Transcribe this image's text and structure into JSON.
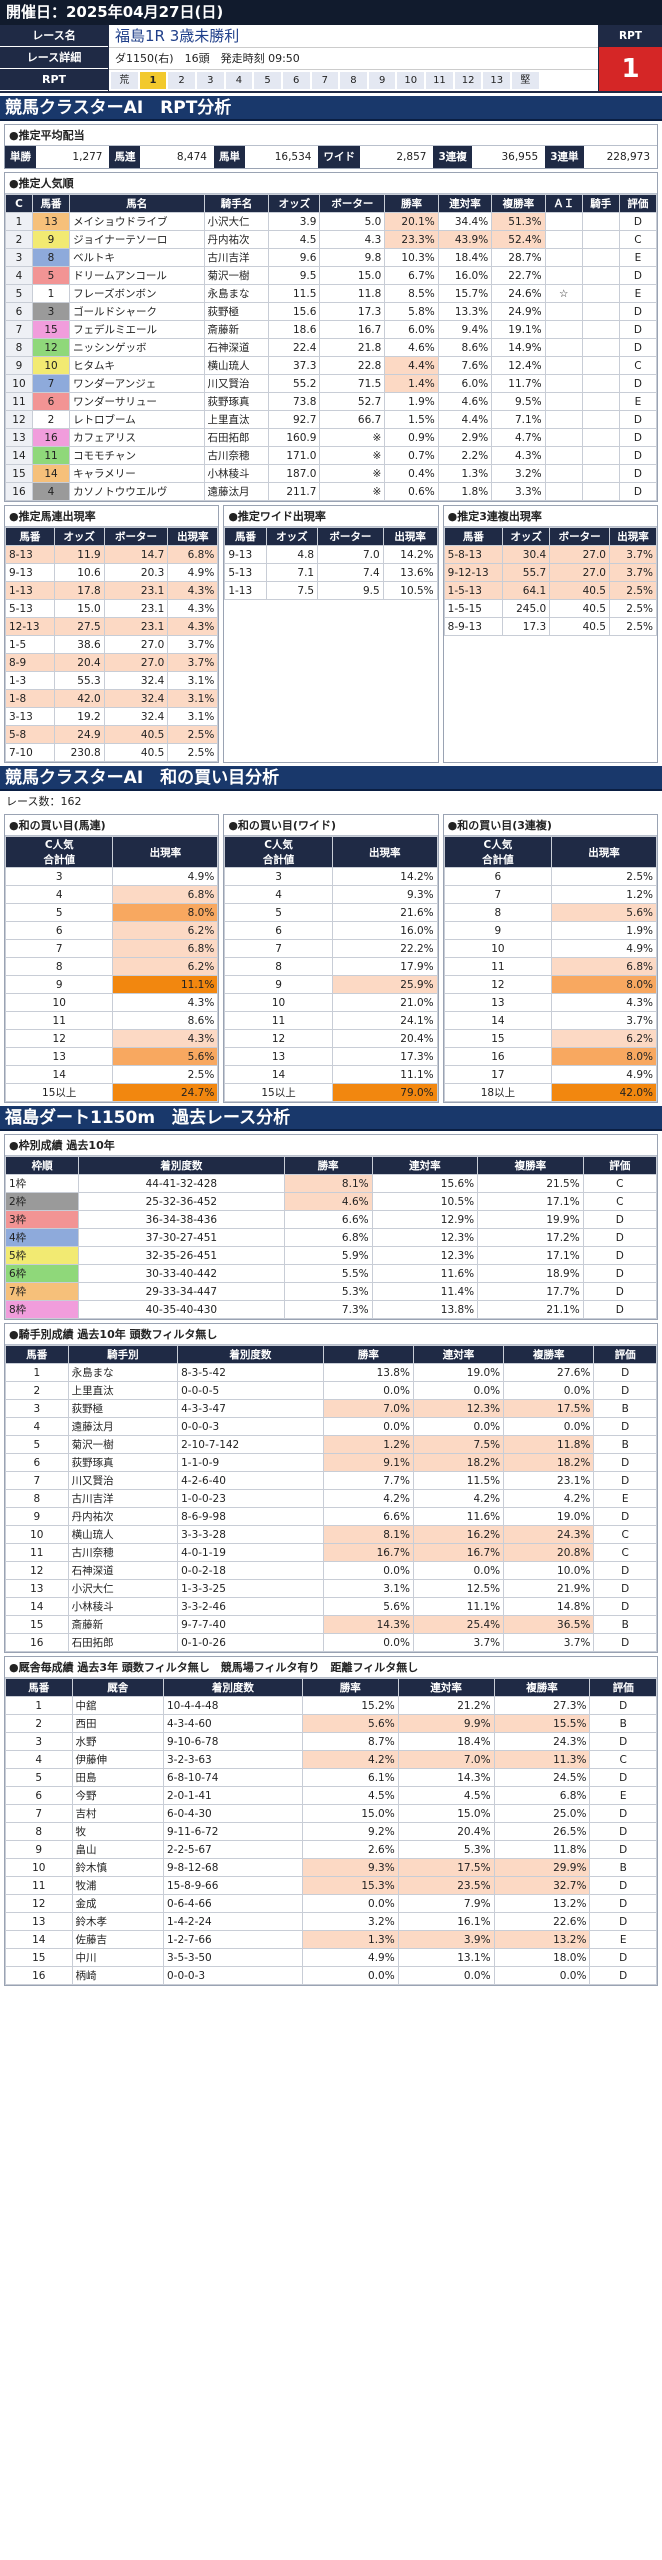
{
  "header": {
    "date": "開催日：2025年04月27日(日)"
  },
  "race": {
    "label_name": "レース名",
    "label_detail": "レース詳細",
    "label_rpt": "RPT",
    "name": "福島1R 3歳未勝利",
    "detail": "ダ1150(右)　16頭　発走時刻 09:50",
    "rpt_label": "RPT",
    "rpt_value": "1",
    "gates": [
      "荒",
      "1",
      "2",
      "3",
      "4",
      "5",
      "6",
      "7",
      "8",
      "9",
      "10",
      "11",
      "12",
      "13",
      "堅"
    ],
    "selected_gate": "1"
  },
  "section1": {
    "title": "競馬クラスターAI　RPT分析"
  },
  "payouts": {
    "title": "●推定平均配当",
    "items": [
      {
        "k": "単勝",
        "v": "1,277"
      },
      {
        "k": "馬連",
        "v": "8,474"
      },
      {
        "k": "馬単",
        "v": "16,534"
      },
      {
        "k": "ワイド",
        "v": "2,857"
      },
      {
        "k": "3連複",
        "v": "36,955"
      },
      {
        "k": "3連単",
        "v": "228,973"
      }
    ]
  },
  "popularity": {
    "title": "●推定人気順",
    "headers": [
      "C",
      "馬番",
      "馬名",
      "騎手名",
      "オッズ",
      "ボーター",
      "勝率",
      "連対率",
      "複勝率",
      "ＡＩ",
      "騎手",
      "評価"
    ],
    "rows": [
      [
        "1",
        "13",
        "メイショウドライブ",
        "小沢大仁",
        "3.9",
        "5.0",
        "20.1%",
        "34.4%",
        "51.3%",
        "",
        "",
        "D"
      ],
      [
        "2",
        "9",
        "ジョイナーテソーロ",
        "丹内祐次",
        "4.5",
        "4.3",
        "23.3%",
        "43.9%",
        "52.4%",
        "",
        "",
        "C"
      ],
      [
        "3",
        "8",
        "ベルトキ",
        "古川吉洋",
        "9.6",
        "9.8",
        "10.3%",
        "18.4%",
        "28.7%",
        "",
        "",
        "E"
      ],
      [
        "4",
        "5",
        "ドリームアンコール",
        "菊沢一樹",
        "9.5",
        "15.0",
        "6.7%",
        "16.0%",
        "22.7%",
        "",
        "",
        "D"
      ],
      [
        "5",
        "1",
        "フレーズボンボン",
        "永島まな",
        "11.5",
        "11.8",
        "8.5%",
        "15.7%",
        "24.6%",
        "☆",
        "",
        "E"
      ],
      [
        "6",
        "3",
        "ゴールドシャーク",
        "荻野極",
        "15.6",
        "17.3",
        "5.8%",
        "13.3%",
        "24.9%",
        "",
        "",
        "D"
      ],
      [
        "7",
        "15",
        "フェデルミエール",
        "斎藤新",
        "18.6",
        "16.7",
        "6.0%",
        "9.4%",
        "19.1%",
        "",
        "",
        "D"
      ],
      [
        "8",
        "12",
        "ニッシンゲッボ",
        "石神深道",
        "22.4",
        "21.8",
        "4.6%",
        "8.6%",
        "14.9%",
        "",
        "",
        "D"
      ],
      [
        "9",
        "10",
        "ヒタムキ",
        "横山琉人",
        "37.3",
        "22.8",
        "4.4%",
        "7.6%",
        "12.4%",
        "",
        "",
        "C"
      ],
      [
        "10",
        "7",
        "ワンダーアンジェ",
        "川又賢治",
        "55.2",
        "71.5",
        "1.4%",
        "6.0%",
        "11.7%",
        "",
        "",
        "D"
      ],
      [
        "11",
        "6",
        "ワンダーサリュー",
        "荻野琢真",
        "73.8",
        "52.7",
        "1.9%",
        "4.6%",
        "9.5%",
        "",
        "",
        "E"
      ],
      [
        "12",
        "2",
        "レトロブーム",
        "上里直汰",
        "92.7",
        "66.7",
        "1.5%",
        "4.4%",
        "7.1%",
        "",
        "",
        "D"
      ],
      [
        "13",
        "16",
        "カフェアリス",
        "石田拓郎",
        "160.9",
        "※",
        "0.9%",
        "2.9%",
        "4.7%",
        "",
        "",
        "D"
      ],
      [
        "14",
        "11",
        "コモモチャン",
        "古川奈穂",
        "171.0",
        "※",
        "0.7%",
        "2.2%",
        "4.3%",
        "",
        "",
        "D"
      ],
      [
        "15",
        "14",
        "キャラメリー",
        "小林稜斗",
        "187.0",
        "※",
        "0.4%",
        "1.3%",
        "3.2%",
        "",
        "",
        "D"
      ],
      [
        "16",
        "4",
        "カソノトウウエルヴ",
        "遠藤汰月",
        "211.7",
        "※",
        "0.6%",
        "1.8%",
        "3.3%",
        "",
        "",
        "D"
      ]
    ]
  },
  "est_umaren": {
    "title": "●推定馬連出現率",
    "headers": [
      "馬番",
      "オッズ",
      "ボーター",
      "出現率"
    ],
    "rows": [
      [
        "8-13",
        "11.9",
        "14.7",
        "6.8%"
      ],
      [
        "9-13",
        "10.6",
        "20.3",
        "4.9%"
      ],
      [
        "1-13",
        "17.8",
        "23.1",
        "4.3%"
      ],
      [
        "5-13",
        "15.0",
        "23.1",
        "4.3%"
      ],
      [
        "12-13",
        "27.5",
        "23.1",
        "4.3%"
      ],
      [
        "1-5",
        "38.6",
        "27.0",
        "3.7%"
      ],
      [
        "8-9",
        "20.4",
        "27.0",
        "3.7%"
      ],
      [
        "1-3",
        "55.3",
        "32.4",
        "3.1%"
      ],
      [
        "1-8",
        "42.0",
        "32.4",
        "3.1%"
      ],
      [
        "3-13",
        "19.2",
        "32.4",
        "3.1%"
      ],
      [
        "5-8",
        "24.9",
        "40.5",
        "2.5%"
      ],
      [
        "7-10",
        "230.8",
        "40.5",
        "2.5%"
      ]
    ]
  },
  "est_wide": {
    "title": "●推定ワイド出現率",
    "headers": [
      "馬番",
      "オッズ",
      "ボーター",
      "出現率"
    ],
    "rows": [
      [
        "9-13",
        "4.8",
        "7.0",
        "14.2%"
      ],
      [
        "5-13",
        "7.1",
        "7.4",
        "13.6%"
      ],
      [
        "1-13",
        "7.5",
        "9.5",
        "10.5%"
      ]
    ]
  },
  "est_sanrenpuku": {
    "title": "●推定3連複出現率",
    "headers": [
      "馬番",
      "オッズ",
      "ボーター",
      "出現率"
    ],
    "rows": [
      [
        "5-8-13",
        "30.4",
        "27.0",
        "3.7%"
      ],
      [
        "9-12-13",
        "55.7",
        "27.0",
        "3.7%"
      ],
      [
        "1-5-13",
        "64.1",
        "40.5",
        "2.5%"
      ],
      [
        "1-5-15",
        "245.0",
        "40.5",
        "2.5%"
      ],
      [
        "8-9-13",
        "17.3",
        "40.5",
        "2.5%"
      ]
    ]
  },
  "section2": {
    "title": "競馬クラスターAI　和の買い目分析",
    "race_count": "レース数：162"
  },
  "wa_umaren": {
    "title": "●和の買い目(馬連)",
    "headers": [
      "C人気\n合計値",
      "出現率"
    ],
    "rows": [
      [
        "3",
        "4.9%"
      ],
      [
        "4",
        "6.8%"
      ],
      [
        "5",
        "8.0%"
      ],
      [
        "6",
        "6.2%"
      ],
      [
        "7",
        "6.8%"
      ],
      [
        "8",
        "6.2%"
      ],
      [
        "9",
        "11.1%"
      ],
      [
        "10",
        "4.3%"
      ],
      [
        "11",
        "8.6%"
      ],
      [
        "12",
        "4.3%"
      ],
      [
        "13",
        "5.6%"
      ],
      [
        "14",
        "2.5%"
      ],
      [
        "15以上",
        "24.7%"
      ]
    ]
  },
  "wa_wide": {
    "title": "●和の買い目(ワイド)",
    "headers": [
      "C人気\n合計値",
      "出現率"
    ],
    "rows": [
      [
        "3",
        "14.2%"
      ],
      [
        "4",
        "9.3%"
      ],
      [
        "5",
        "21.6%"
      ],
      [
        "6",
        "16.0%"
      ],
      [
        "7",
        "22.2%"
      ],
      [
        "8",
        "17.9%"
      ],
      [
        "9",
        "25.9%"
      ],
      [
        "10",
        "21.0%"
      ],
      [
        "11",
        "24.1%"
      ],
      [
        "12",
        "20.4%"
      ],
      [
        "13",
        "17.3%"
      ],
      [
        "14",
        "11.1%"
      ],
      [
        "15以上",
        "79.0%"
      ]
    ]
  },
  "wa_sanren": {
    "title": "●和の買い目(3連複)",
    "headers": [
      "C人気\n合計値",
      "出現率"
    ],
    "rows": [
      [
        "6",
        "2.5%"
      ],
      [
        "7",
        "1.2%"
      ],
      [
        "8",
        "5.6%"
      ],
      [
        "9",
        "1.9%"
      ],
      [
        "10",
        "4.9%"
      ],
      [
        "11",
        "6.8%"
      ],
      [
        "12",
        "8.0%"
      ],
      [
        "13",
        "4.3%"
      ],
      [
        "14",
        "3.7%"
      ],
      [
        "15",
        "6.2%"
      ],
      [
        "16",
        "8.0%"
      ],
      [
        "17",
        "4.9%"
      ],
      [
        "18以上",
        "42.0%"
      ]
    ]
  },
  "section3": {
    "title": "福島ダート1150m　過去レース分析"
  },
  "frame": {
    "title": "●枠別成績 過去10年",
    "headers": [
      "枠順",
      "着別度数",
      "勝率",
      "連対率",
      "複勝率",
      "評価"
    ],
    "rows": [
      [
        "1枠",
        "44-41-32-428",
        "8.1%",
        "15.6%",
        "21.5%",
        "C"
      ],
      [
        "2枠",
        "25-32-36-452",
        "4.6%",
        "10.5%",
        "17.1%",
        "C"
      ],
      [
        "3枠",
        "36-34-38-436",
        "6.6%",
        "12.9%",
        "19.9%",
        "D"
      ],
      [
        "4枠",
        "37-30-27-451",
        "6.8%",
        "12.3%",
        "17.2%",
        "D"
      ],
      [
        "5枠",
        "32-35-26-451",
        "5.9%",
        "12.3%",
        "17.1%",
        "D"
      ],
      [
        "6枠",
        "30-33-40-442",
        "5.5%",
        "11.6%",
        "18.9%",
        "D"
      ],
      [
        "7枠",
        "29-33-34-447",
        "5.3%",
        "11.4%",
        "17.7%",
        "D"
      ],
      [
        "8枠",
        "40-35-40-430",
        "7.3%",
        "13.8%",
        "21.1%",
        "D"
      ]
    ]
  },
  "jockey": {
    "title": "●騎手別成績 過去10年 頭数フィルタ無し",
    "headers": [
      "馬番",
      "騎手別",
      "着別度数",
      "勝率",
      "連対率",
      "複勝率",
      "評価"
    ],
    "rows": [
      [
        "1",
        "永島まな",
        "8-3-5-42",
        "13.8%",
        "19.0%",
        "27.6%",
        "D"
      ],
      [
        "2",
        "上里直汰",
        "0-0-0-5",
        "0.0%",
        "0.0%",
        "0.0%",
        "D"
      ],
      [
        "3",
        "荻野極",
        "4-3-3-47",
        "7.0%",
        "12.3%",
        "17.5%",
        "B"
      ],
      [
        "4",
        "遠藤汰月",
        "0-0-0-3",
        "0.0%",
        "0.0%",
        "0.0%",
        "D"
      ],
      [
        "5",
        "菊沢一樹",
        "2-10-7-142",
        "1.2%",
        "7.5%",
        "11.8%",
        "B"
      ],
      [
        "6",
        "荻野琢真",
        "1-1-0-9",
        "9.1%",
        "18.2%",
        "18.2%",
        "D"
      ],
      [
        "7",
        "川又賢治",
        "4-2-6-40",
        "7.7%",
        "11.5%",
        "23.1%",
        "D"
      ],
      [
        "8",
        "古川吉洋",
        "1-0-0-23",
        "4.2%",
        "4.2%",
        "4.2%",
        "E"
      ],
      [
        "9",
        "丹内祐次",
        "8-6-9-98",
        "6.6%",
        "11.6%",
        "19.0%",
        "D"
      ],
      [
        "10",
        "横山琉人",
        "3-3-3-28",
        "8.1%",
        "16.2%",
        "24.3%",
        "C"
      ],
      [
        "11",
        "古川奈穂",
        "4-0-1-19",
        "16.7%",
        "16.7%",
        "20.8%",
        "C"
      ],
      [
        "12",
        "石神深道",
        "0-0-2-18",
        "0.0%",
        "0.0%",
        "10.0%",
        "D"
      ],
      [
        "13",
        "小沢大仁",
        "1-3-3-25",
        "3.1%",
        "12.5%",
        "21.9%",
        "D"
      ],
      [
        "14",
        "小林稜斗",
        "3-3-2-46",
        "5.6%",
        "11.1%",
        "14.8%",
        "D"
      ],
      [
        "15",
        "斎藤新",
        "9-7-7-40",
        "14.3%",
        "25.4%",
        "36.5%",
        "B"
      ],
      [
        "16",
        "石田拓郎",
        "0-1-0-26",
        "0.0%",
        "3.7%",
        "3.7%",
        "D"
      ]
    ]
  },
  "stable": {
    "title": "●厩舎毎成績 過去3年 頭数フィルタ無し　競馬場フィルタ有り　距離フィルタ無し",
    "headers": [
      "馬番",
      "厩舎",
      "着別度数",
      "勝率",
      "連対率",
      "複勝率",
      "評価"
    ],
    "rows": [
      [
        "1",
        "中舘",
        "10-4-4-48",
        "15.2%",
        "21.2%",
        "27.3%",
        "D"
      ],
      [
        "2",
        "西田",
        "4-3-4-60",
        "5.6%",
        "9.9%",
        "15.5%",
        "B"
      ],
      [
        "3",
        "水野",
        "9-10-6-78",
        "8.7%",
        "18.4%",
        "24.3%",
        "D"
      ],
      [
        "4",
        "伊藤伸",
        "3-2-3-63",
        "4.2%",
        "7.0%",
        "11.3%",
        "C"
      ],
      [
        "5",
        "田島",
        "6-8-10-74",
        "6.1%",
        "14.3%",
        "24.5%",
        "D"
      ],
      [
        "6",
        "今野",
        "2-0-1-41",
        "4.5%",
        "4.5%",
        "6.8%",
        "E"
      ],
      [
        "7",
        "吉村",
        "6-0-4-30",
        "15.0%",
        "15.0%",
        "25.0%",
        "D"
      ],
      [
        "8",
        "牧",
        "9-11-6-72",
        "9.2%",
        "20.4%",
        "26.5%",
        "D"
      ],
      [
        "9",
        "畠山",
        "2-2-5-67",
        "2.6%",
        "5.3%",
        "11.8%",
        "D"
      ],
      [
        "10",
        "鈴木慎",
        "9-8-12-68",
        "9.3%",
        "17.5%",
        "29.9%",
        "B"
      ],
      [
        "11",
        "牧浦",
        "15-8-9-66",
        "15.3%",
        "23.5%",
        "32.7%",
        "D"
      ],
      [
        "12",
        "金成",
        "0-6-4-66",
        "0.0%",
        "7.9%",
        "13.2%",
        "D"
      ],
      [
        "13",
        "鈴木孝",
        "1-4-2-24",
        "3.2%",
        "16.1%",
        "22.6%",
        "D"
      ],
      [
        "14",
        "佐藤吉",
        "1-2-7-66",
        "1.3%",
        "3.9%",
        "13.2%",
        "E"
      ],
      [
        "15",
        "中川",
        "3-5-3-50",
        "4.9%",
        "13.1%",
        "18.0%",
        "D"
      ],
      [
        "16",
        "柄崎",
        "0-0-0-3",
        "0.0%",
        "0.0%",
        "0.0%",
        "D"
      ]
    ]
  },
  "colors": {
    "frame1": "#ffffff",
    "frame2": "#9a9a9a",
    "frame3": "#f29494",
    "frame4": "#8eaadb",
    "frame5": "#f2ea72",
    "frame6": "#8fd87a",
    "frame7": "#f6c07a",
    "frame8": "#f19ddc",
    "header": "#1f2a45",
    "section": "#19386b"
  }
}
